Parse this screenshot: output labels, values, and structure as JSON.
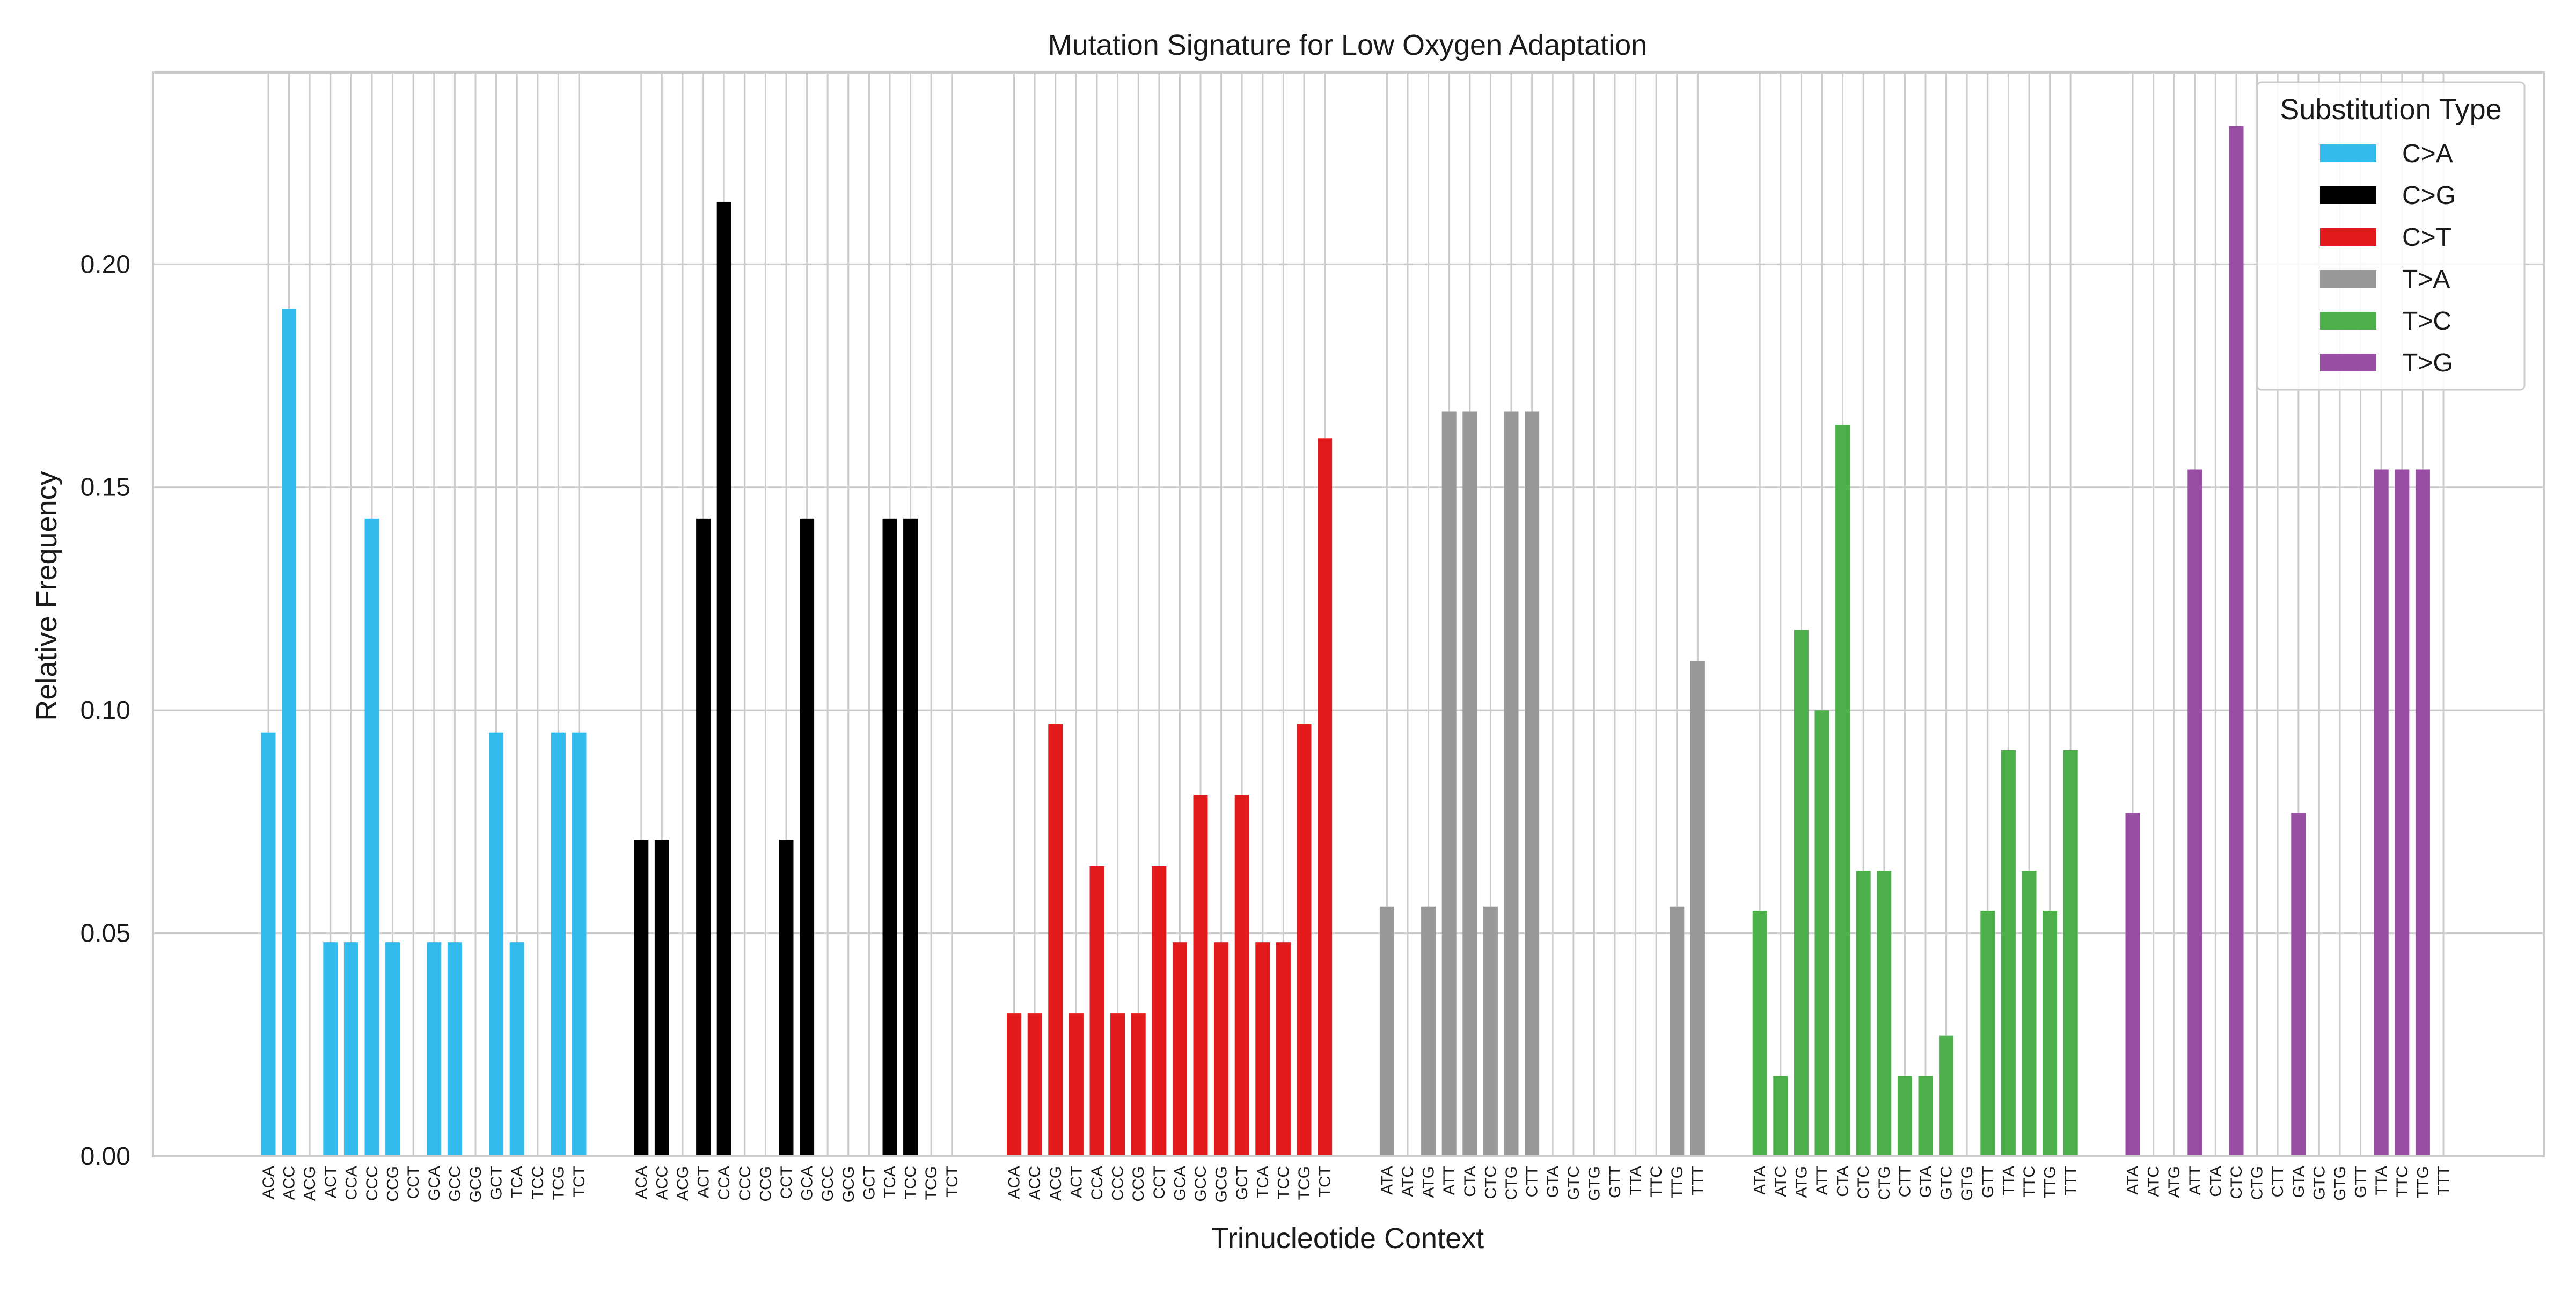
{
  "chart_data": {
    "type": "bar",
    "title": "Mutation Signature for Low Oxygen Adaptation",
    "xlabel": "Trinucleotide Context",
    "ylabel": "Relative Frequency",
    "ylim": [
      0,
      0.243
    ],
    "yticks": [
      "0.00",
      "0.05",
      "0.10",
      "0.15",
      "0.20"
    ],
    "ytick_values": [
      0,
      0.05,
      0.1,
      0.15,
      0.2
    ],
    "grid": true,
    "legend": {
      "title": "Substitution Type",
      "placement": "top-right"
    },
    "series": [
      {
        "name": "C>A",
        "color": "#33bbee",
        "categories": [
          "ACA",
          "ACC",
          "ACG",
          "ACT",
          "CCA",
          "CCC",
          "CCG",
          "CCT",
          "GCA",
          "GCC",
          "GCG",
          "GCT",
          "TCA",
          "TCC",
          "TCG",
          "TCT"
        ],
        "values": [
          0.095,
          0.19,
          0,
          0.048,
          0.048,
          0.143,
          0.048,
          0,
          0.048,
          0.048,
          0,
          0.095,
          0.048,
          0,
          0.095,
          0.095
        ]
      },
      {
        "name": "C>G",
        "color": "#000000",
        "categories": [
          "ACA",
          "ACC",
          "ACG",
          "ACT",
          "CCA",
          "CCC",
          "CCG",
          "CCT",
          "GCA",
          "GCC",
          "GCG",
          "GCT",
          "TCA",
          "TCC",
          "TCG",
          "TCT"
        ],
        "values": [
          0.071,
          0.071,
          0,
          0.143,
          0.214,
          0,
          0,
          0.071,
          0.143,
          0,
          0,
          0,
          0.143,
          0.143,
          0,
          0
        ]
      },
      {
        "name": "C>T",
        "color": "#e31a1c",
        "categories": [
          "ACA",
          "ACC",
          "ACG",
          "ACT",
          "CCA",
          "CCC",
          "CCG",
          "CCT",
          "GCA",
          "GCC",
          "GCG",
          "GCT",
          "TCA",
          "TCC",
          "TCG",
          "TCT"
        ],
        "values": [
          0.032,
          0.032,
          0.097,
          0.032,
          0.065,
          0.032,
          0.032,
          0.065,
          0.048,
          0.081,
          0.048,
          0.081,
          0.048,
          0.048,
          0.097,
          0.161
        ]
      },
      {
        "name": "T>A",
        "color": "#999999",
        "categories": [
          "ATA",
          "ATC",
          "ATG",
          "ATT",
          "CTA",
          "CTC",
          "CTG",
          "CTT",
          "GTA",
          "GTC",
          "GTG",
          "GTT",
          "TTA",
          "TTC",
          "TTG",
          "TTT"
        ],
        "values": [
          0.056,
          0,
          0.056,
          0.167,
          0.167,
          0.056,
          0.167,
          0.167,
          0,
          0,
          0,
          0,
          0,
          0,
          0.056,
          0.111
        ]
      },
      {
        "name": "T>C",
        "color": "#4daf4a",
        "categories": [
          "ATA",
          "ATC",
          "ATG",
          "ATT",
          "CTA",
          "CTC",
          "CTG",
          "CTT",
          "GTA",
          "GTC",
          "GTG",
          "GTT",
          "TTA",
          "TTC",
          "TTG",
          "TTT"
        ],
        "values": [
          0.055,
          0.018,
          0.118,
          0.1,
          0.164,
          0.064,
          0.064,
          0.018,
          0.018,
          0.027,
          0,
          0.055,
          0.091,
          0.064,
          0.055,
          0.091
        ]
      },
      {
        "name": "T>G",
        "color": "#984ea3",
        "categories": [
          "ATA",
          "ATC",
          "ATG",
          "ATT",
          "CTA",
          "CTC",
          "CTG",
          "CTT",
          "GTA",
          "GTC",
          "GTG",
          "GTT",
          "TTA",
          "TTC",
          "TTG",
          "TTT"
        ],
        "values": [
          0.077,
          0,
          0,
          0.154,
          0,
          0.231,
          0,
          0,
          0.077,
          0,
          0,
          0,
          0.154,
          0.154,
          0.154,
          0
        ]
      }
    ]
  }
}
